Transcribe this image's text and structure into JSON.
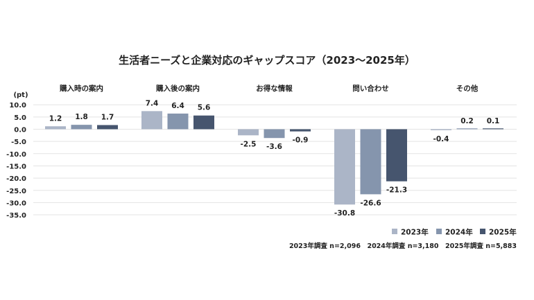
{
  "chart_data": {
    "type": "bar",
    "title": "生活者ニーズと企業対応のギャップスコア（2023〜2025年）",
    "ylabel": "(pt)",
    "ylim": [
      -35,
      10
    ],
    "yticks": [
      "10.0",
      "5.0",
      "0.0",
      "-5.0",
      "-10.0",
      "-15.0",
      "-20.0",
      "-25.0",
      "-30.0",
      "-35.0"
    ],
    "ytick_values": [
      10,
      5,
      0,
      -5,
      -10,
      -15,
      -20,
      -25,
      -30,
      -35
    ],
    "grid": true,
    "legend_position": "bottom-right",
    "categories": [
      "購入時の案内",
      "購入後の案内",
      "お得な情報",
      "問い合わせ",
      "その他"
    ],
    "series": [
      {
        "name": "2023年",
        "color": "#abb5c7",
        "values": [
          1.2,
          7.4,
          -2.5,
          -30.8,
          -0.4
        ],
        "labels": [
          "1.2",
          "7.4",
          "-2.5",
          "-30.8",
          "-0.4"
        ]
      },
      {
        "name": "2024年",
        "color": "#8595ad",
        "values": [
          1.8,
          6.4,
          -3.6,
          -26.6,
          0.2
        ],
        "labels": [
          "1.8",
          "6.4",
          "-3.6",
          "-26.6",
          "0.2"
        ]
      },
      {
        "name": "2025年",
        "color": "#46556e",
        "values": [
          1.7,
          5.6,
          -0.9,
          -21.3,
          0.1
        ],
        "labels": [
          "1.7",
          "5.6",
          "-0.9",
          "-21.3",
          "0.1"
        ]
      }
    ],
    "note": "2023年調査 n=2,096　2024年調査 n=3,180　2025年調査 n=5,883"
  }
}
